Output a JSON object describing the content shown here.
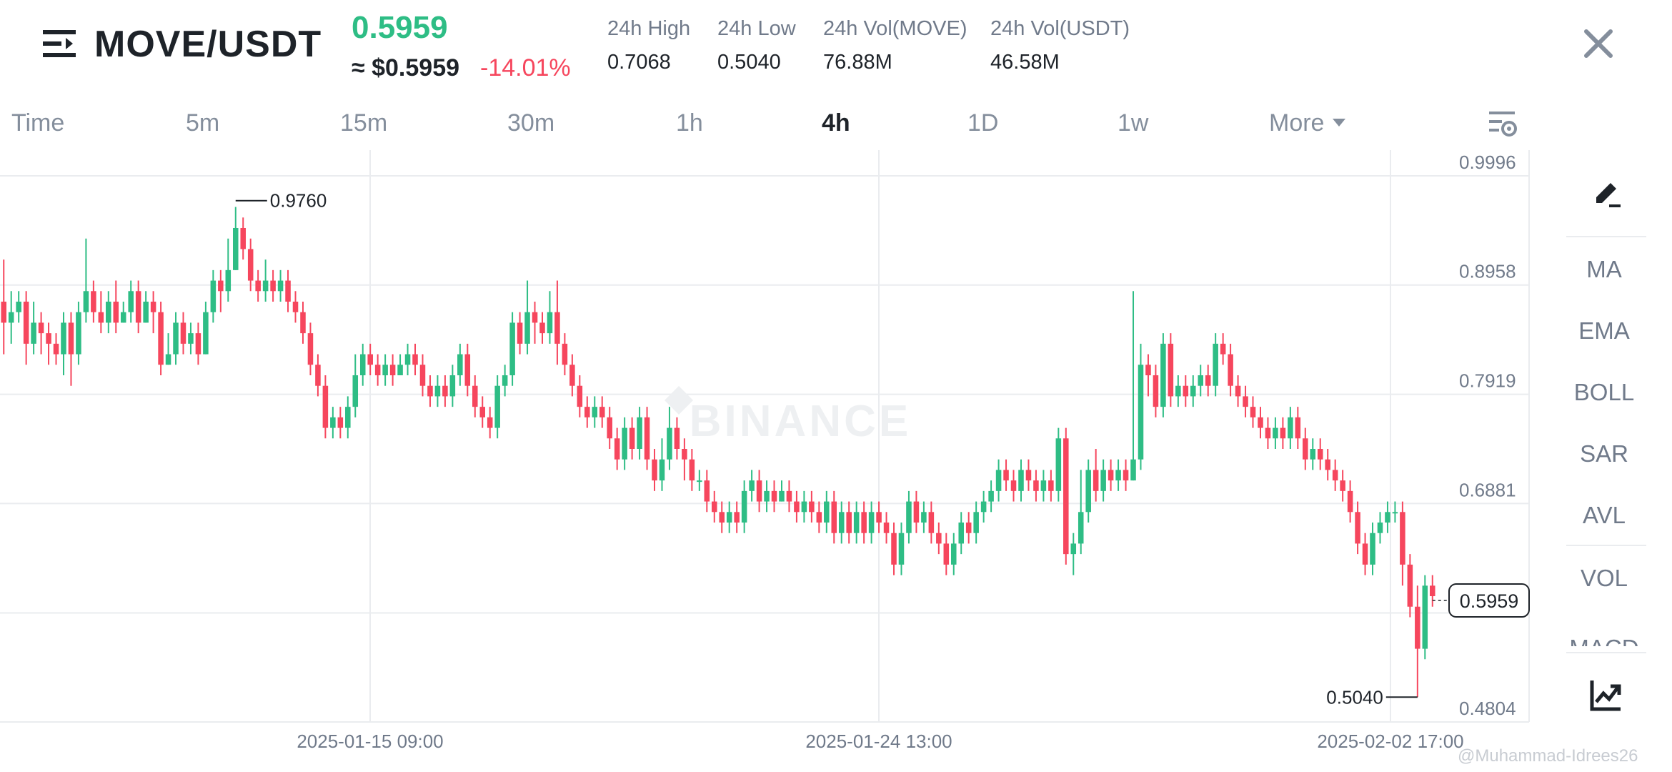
{
  "header": {
    "pair": "MOVE/USDT",
    "last_price": "0.5959",
    "approx_price": "≈ $0.5959",
    "change_pct": "-14.01%",
    "stats": [
      {
        "label": "24h High",
        "value": "0.7068"
      },
      {
        "label": "24h Low",
        "value": "0.5040"
      },
      {
        "label": "24h Vol(MOVE)",
        "value": "76.88M"
      },
      {
        "label": "24h Vol(USDT)",
        "value": "46.58M"
      }
    ],
    "icons": {
      "menu": "menu-icon",
      "close": "close-icon"
    }
  },
  "tabs": [
    {
      "label": "Time"
    },
    {
      "label": "5m"
    },
    {
      "label": "15m"
    },
    {
      "label": "30m"
    },
    {
      "label": "1h"
    },
    {
      "label": "4h",
      "active": true
    },
    {
      "label": "1D"
    },
    {
      "label": "1w"
    },
    {
      "label": "More"
    }
  ],
  "toolbar": {
    "indicators": [
      "MA",
      "EMA",
      "BOLL",
      "SAR",
      "AVL",
      "VOL",
      "MACD"
    ]
  },
  "watermark": "Binance watermark",
  "credit": "@Muhammad-Idrees26",
  "colors": {
    "up": "#2ebd85",
    "down": "#f6465d",
    "text": "#1e2329",
    "muted": "#707a8a",
    "grid": "#eaecef"
  },
  "chart_data": {
    "type": "candlestick",
    "brand": "BINANCE",
    "y_ticks": [
      "0.9996",
      "0.8958",
      "0.7919",
      "0.6881",
      "0.5959",
      "0.4804"
    ],
    "ylim": [
      0.4804,
      0.9996
    ],
    "x_ticks": [
      "2025-01-15 09:00",
      "2025-01-24 13:00",
      "2025-02-02 17:00"
    ],
    "high_marker": {
      "label": "0.9760",
      "value": 0.976
    },
    "low_marker": {
      "label": "0.5040",
      "value": 0.504
    },
    "last_price": {
      "label": "0.5959",
      "value": 0.5959
    },
    "candles": [
      [
        0.88,
        0.86,
        0.92,
        0.83
      ],
      [
        0.86,
        0.87,
        0.89,
        0.84
      ],
      [
        0.87,
        0.88,
        0.89,
        0.86
      ],
      [
        0.88,
        0.84,
        0.89,
        0.82
      ],
      [
        0.84,
        0.86,
        0.88,
        0.83
      ],
      [
        0.86,
        0.85,
        0.87,
        0.83
      ],
      [
        0.85,
        0.84,
        0.86,
        0.82
      ],
      [
        0.84,
        0.83,
        0.85,
        0.82
      ],
      [
        0.83,
        0.86,
        0.87,
        0.81
      ],
      [
        0.86,
        0.83,
        0.87,
        0.8
      ],
      [
        0.83,
        0.87,
        0.88,
        0.82
      ],
      [
        0.87,
        0.89,
        0.94,
        0.86
      ],
      [
        0.89,
        0.87,
        0.9,
        0.86
      ],
      [
        0.87,
        0.86,
        0.89,
        0.85
      ],
      [
        0.86,
        0.88,
        0.89,
        0.85
      ],
      [
        0.88,
        0.86,
        0.9,
        0.85
      ],
      [
        0.86,
        0.87,
        0.88,
        0.86
      ],
      [
        0.87,
        0.89,
        0.9,
        0.86
      ],
      [
        0.89,
        0.86,
        0.9,
        0.85
      ],
      [
        0.86,
        0.88,
        0.89,
        0.86
      ],
      [
        0.88,
        0.87,
        0.89,
        0.85
      ],
      [
        0.87,
        0.82,
        0.88,
        0.81
      ],
      [
        0.82,
        0.83,
        0.85,
        0.82
      ],
      [
        0.83,
        0.86,
        0.87,
        0.82
      ],
      [
        0.86,
        0.84,
        0.87,
        0.83
      ],
      [
        0.84,
        0.85,
        0.86,
        0.83
      ],
      [
        0.85,
        0.83,
        0.86,
        0.82
      ],
      [
        0.83,
        0.87,
        0.88,
        0.83
      ],
      [
        0.87,
        0.9,
        0.91,
        0.86
      ],
      [
        0.9,
        0.89,
        0.91,
        0.87
      ],
      [
        0.89,
        0.91,
        0.94,
        0.88
      ],
      [
        0.91,
        0.95,
        0.97,
        0.91
      ],
      [
        0.95,
        0.93,
        0.96,
        0.92
      ],
      [
        0.93,
        0.9,
        0.94,
        0.89
      ],
      [
        0.9,
        0.89,
        0.91,
        0.88
      ],
      [
        0.89,
        0.9,
        0.92,
        0.88
      ],
      [
        0.9,
        0.89,
        0.91,
        0.88
      ],
      [
        0.89,
        0.9,
        0.91,
        0.88
      ],
      [
        0.9,
        0.88,
        0.91,
        0.87
      ],
      [
        0.88,
        0.87,
        0.89,
        0.86
      ],
      [
        0.87,
        0.85,
        0.88,
        0.84
      ],
      [
        0.85,
        0.82,
        0.86,
        0.81
      ],
      [
        0.82,
        0.8,
        0.83,
        0.79
      ],
      [
        0.8,
        0.76,
        0.81,
        0.75
      ],
      [
        0.76,
        0.77,
        0.78,
        0.75
      ],
      [
        0.77,
        0.76,
        0.78,
        0.75
      ],
      [
        0.76,
        0.78,
        0.79,
        0.75
      ],
      [
        0.78,
        0.81,
        0.83,
        0.77
      ],
      [
        0.81,
        0.83,
        0.84,
        0.8
      ],
      [
        0.83,
        0.82,
        0.84,
        0.81
      ],
      [
        0.82,
        0.81,
        0.83,
        0.8
      ],
      [
        0.81,
        0.82,
        0.83,
        0.8
      ],
      [
        0.82,
        0.81,
        0.83,
        0.8
      ],
      [
        0.81,
        0.82,
        0.83,
        0.81
      ],
      [
        0.82,
        0.83,
        0.84,
        0.81
      ],
      [
        0.83,
        0.82,
        0.84,
        0.81
      ],
      [
        0.82,
        0.8,
        0.83,
        0.79
      ],
      [
        0.8,
        0.79,
        0.81,
        0.78
      ],
      [
        0.79,
        0.8,
        0.81,
        0.78
      ],
      [
        0.8,
        0.79,
        0.81,
        0.78
      ],
      [
        0.79,
        0.81,
        0.82,
        0.78
      ],
      [
        0.81,
        0.83,
        0.84,
        0.8
      ],
      [
        0.83,
        0.8,
        0.84,
        0.79
      ],
      [
        0.8,
        0.78,
        0.81,
        0.77
      ],
      [
        0.78,
        0.77,
        0.79,
        0.76
      ],
      [
        0.77,
        0.76,
        0.78,
        0.75
      ],
      [
        0.76,
        0.8,
        0.81,
        0.75
      ],
      [
        0.8,
        0.81,
        0.82,
        0.79
      ],
      [
        0.81,
        0.86,
        0.87,
        0.8
      ],
      [
        0.86,
        0.84,
        0.87,
        0.83
      ],
      [
        0.84,
        0.87,
        0.9,
        0.83
      ],
      [
        0.87,
        0.86,
        0.88,
        0.84
      ],
      [
        0.86,
        0.85,
        0.87,
        0.84
      ],
      [
        0.85,
        0.87,
        0.89,
        0.84
      ],
      [
        0.87,
        0.84,
        0.9,
        0.82
      ],
      [
        0.84,
        0.82,
        0.85,
        0.81
      ],
      [
        0.82,
        0.8,
        0.83,
        0.79
      ],
      [
        0.8,
        0.78,
        0.81,
        0.77
      ],
      [
        0.78,
        0.77,
        0.79,
        0.76
      ],
      [
        0.77,
        0.78,
        0.79,
        0.76
      ],
      [
        0.78,
        0.77,
        0.79,
        0.76
      ],
      [
        0.77,
        0.75,
        0.78,
        0.74
      ],
      [
        0.75,
        0.73,
        0.76,
        0.72
      ],
      [
        0.73,
        0.76,
        0.77,
        0.72
      ],
      [
        0.76,
        0.74,
        0.77,
        0.73
      ],
      [
        0.74,
        0.77,
        0.78,
        0.73
      ],
      [
        0.77,
        0.73,
        0.78,
        0.72
      ],
      [
        0.73,
        0.71,
        0.74,
        0.7
      ],
      [
        0.71,
        0.73,
        0.75,
        0.7
      ],
      [
        0.73,
        0.76,
        0.78,
        0.72
      ],
      [
        0.76,
        0.74,
        0.77,
        0.73
      ],
      [
        0.74,
        0.73,
        0.75,
        0.71
      ],
      [
        0.73,
        0.71,
        0.74,
        0.7
      ],
      [
        0.71,
        0.71,
        0.72,
        0.7
      ],
      [
        0.71,
        0.69,
        0.72,
        0.68
      ],
      [
        0.69,
        0.68,
        0.7,
        0.67
      ],
      [
        0.68,
        0.67,
        0.69,
        0.66
      ],
      [
        0.67,
        0.68,
        0.69,
        0.66
      ],
      [
        0.68,
        0.67,
        0.69,
        0.66
      ],
      [
        0.67,
        0.7,
        0.71,
        0.66
      ],
      [
        0.7,
        0.71,
        0.72,
        0.69
      ],
      [
        0.71,
        0.69,
        0.72,
        0.68
      ],
      [
        0.69,
        0.7,
        0.71,
        0.68
      ],
      [
        0.7,
        0.69,
        0.71,
        0.68
      ],
      [
        0.69,
        0.7,
        0.71,
        0.69
      ],
      [
        0.7,
        0.69,
        0.71,
        0.68
      ],
      [
        0.69,
        0.68,
        0.7,
        0.67
      ],
      [
        0.68,
        0.69,
        0.7,
        0.67
      ],
      [
        0.69,
        0.68,
        0.7,
        0.67
      ],
      [
        0.68,
        0.67,
        0.69,
        0.66
      ],
      [
        0.67,
        0.69,
        0.7,
        0.66
      ],
      [
        0.69,
        0.66,
        0.7,
        0.65
      ],
      [
        0.66,
        0.68,
        0.69,
        0.65
      ],
      [
        0.68,
        0.66,
        0.69,
        0.65
      ],
      [
        0.66,
        0.68,
        0.69,
        0.65
      ],
      [
        0.68,
        0.66,
        0.69,
        0.65
      ],
      [
        0.66,
        0.68,
        0.69,
        0.65
      ],
      [
        0.68,
        0.67,
        0.69,
        0.66
      ],
      [
        0.67,
        0.66,
        0.68,
        0.65
      ],
      [
        0.66,
        0.63,
        0.67,
        0.62
      ],
      [
        0.63,
        0.66,
        0.67,
        0.62
      ],
      [
        0.66,
        0.69,
        0.7,
        0.65
      ],
      [
        0.69,
        0.67,
        0.7,
        0.66
      ],
      [
        0.67,
        0.68,
        0.69,
        0.66
      ],
      [
        0.68,
        0.66,
        0.69,
        0.65
      ],
      [
        0.66,
        0.65,
        0.67,
        0.64
      ],
      [
        0.65,
        0.63,
        0.66,
        0.62
      ],
      [
        0.63,
        0.65,
        0.66,
        0.62
      ],
      [
        0.65,
        0.67,
        0.68,
        0.64
      ],
      [
        0.67,
        0.66,
        0.68,
        0.65
      ],
      [
        0.66,
        0.68,
        0.69,
        0.65
      ],
      [
        0.68,
        0.69,
        0.7,
        0.67
      ],
      [
        0.69,
        0.7,
        0.71,
        0.68
      ],
      [
        0.7,
        0.72,
        0.73,
        0.69
      ],
      [
        0.72,
        0.71,
        0.73,
        0.7
      ],
      [
        0.71,
        0.7,
        0.72,
        0.69
      ],
      [
        0.7,
        0.72,
        0.73,
        0.69
      ],
      [
        0.72,
        0.71,
        0.73,
        0.7
      ],
      [
        0.71,
        0.7,
        0.72,
        0.69
      ],
      [
        0.7,
        0.71,
        0.72,
        0.69
      ],
      [
        0.71,
        0.7,
        0.72,
        0.69
      ],
      [
        0.7,
        0.75,
        0.76,
        0.69
      ],
      [
        0.75,
        0.64,
        0.76,
        0.63
      ],
      [
        0.64,
        0.65,
        0.66,
        0.62
      ],
      [
        0.65,
        0.68,
        0.72,
        0.64
      ],
      [
        0.68,
        0.72,
        0.73,
        0.67
      ],
      [
        0.72,
        0.7,
        0.74,
        0.69
      ],
      [
        0.7,
        0.72,
        0.73,
        0.69
      ],
      [
        0.72,
        0.71,
        0.73,
        0.7
      ],
      [
        0.71,
        0.72,
        0.73,
        0.7
      ],
      [
        0.72,
        0.71,
        0.73,
        0.7
      ],
      [
        0.71,
        0.73,
        0.89,
        0.71
      ],
      [
        0.73,
        0.82,
        0.84,
        0.72
      ],
      [
        0.82,
        0.81,
        0.83,
        0.79
      ],
      [
        0.81,
        0.78,
        0.82,
        0.77
      ],
      [
        0.78,
        0.84,
        0.85,
        0.77
      ],
      [
        0.84,
        0.79,
        0.85,
        0.78
      ],
      [
        0.79,
        0.8,
        0.81,
        0.78
      ],
      [
        0.8,
        0.79,
        0.81,
        0.78
      ],
      [
        0.79,
        0.8,
        0.81,
        0.78
      ],
      [
        0.8,
        0.81,
        0.82,
        0.79
      ],
      [
        0.81,
        0.8,
        0.82,
        0.79
      ],
      [
        0.8,
        0.84,
        0.85,
        0.79
      ],
      [
        0.84,
        0.83,
        0.85,
        0.82
      ],
      [
        0.83,
        0.8,
        0.84,
        0.79
      ],
      [
        0.8,
        0.79,
        0.81,
        0.78
      ],
      [
        0.79,
        0.78,
        0.8,
        0.77
      ],
      [
        0.78,
        0.77,
        0.79,
        0.76
      ],
      [
        0.77,
        0.76,
        0.78,
        0.75
      ],
      [
        0.76,
        0.75,
        0.77,
        0.74
      ],
      [
        0.75,
        0.76,
        0.77,
        0.74
      ],
      [
        0.76,
        0.75,
        0.77,
        0.74
      ],
      [
        0.75,
        0.77,
        0.78,
        0.74
      ],
      [
        0.77,
        0.75,
        0.78,
        0.74
      ],
      [
        0.75,
        0.73,
        0.76,
        0.72
      ],
      [
        0.73,
        0.74,
        0.75,
        0.72
      ],
      [
        0.74,
        0.73,
        0.75,
        0.72
      ],
      [
        0.73,
        0.72,
        0.74,
        0.71
      ],
      [
        0.72,
        0.71,
        0.73,
        0.7
      ],
      [
        0.71,
        0.7,
        0.72,
        0.69
      ],
      [
        0.7,
        0.68,
        0.71,
        0.67
      ],
      [
        0.68,
        0.65,
        0.69,
        0.64
      ],
      [
        0.65,
        0.63,
        0.66,
        0.62
      ],
      [
        0.63,
        0.66,
        0.67,
        0.62
      ],
      [
        0.66,
        0.67,
        0.68,
        0.65
      ],
      [
        0.67,
        0.68,
        0.69,
        0.66
      ],
      [
        0.68,
        0.68,
        0.69,
        0.67
      ],
      [
        0.68,
        0.63,
        0.69,
        0.61
      ],
      [
        0.63,
        0.59,
        0.64,
        0.58
      ],
      [
        0.59,
        0.55,
        0.61,
        0.504
      ],
      [
        0.55,
        0.61,
        0.62,
        0.54
      ],
      [
        0.61,
        0.6,
        0.62,
        0.59
      ]
    ]
  }
}
